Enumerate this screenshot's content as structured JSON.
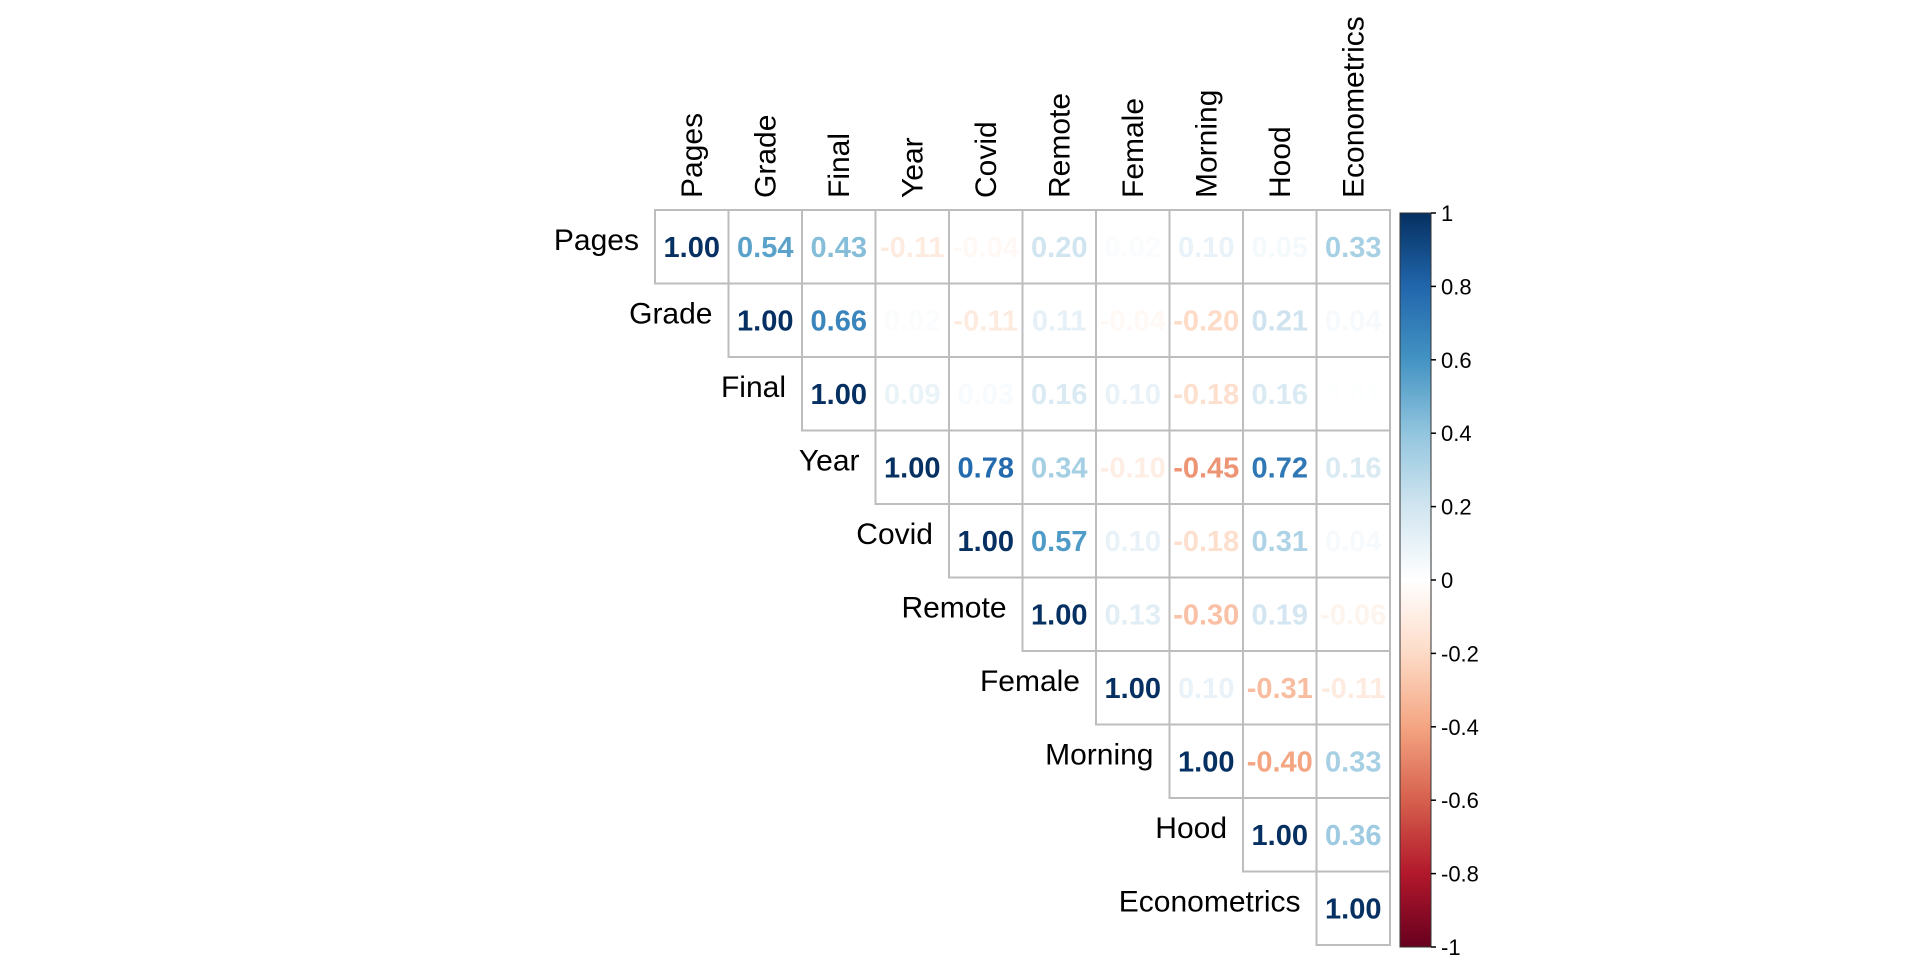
{
  "chart_data": {
    "type": "heatmap",
    "subtype": "correlation-matrix-upper",
    "variables": [
      "Pages",
      "Grade",
      "Final",
      "Year",
      "Covid",
      "Remote",
      "Female",
      "Morning",
      "Hood",
      "Econometrics"
    ],
    "matrix": [
      [
        1.0,
        0.54,
        0.43,
        -0.11,
        -0.04,
        0.2,
        0.02,
        0.1,
        0.05,
        0.33
      ],
      [
        null,
        1.0,
        0.66,
        0.02,
        -0.11,
        0.11,
        -0.04,
        -0.2,
        0.21,
        0.04
      ],
      [
        null,
        null,
        1.0,
        0.09,
        0.03,
        0.16,
        0.1,
        -0.18,
        0.16,
        0.01
      ],
      [
        null,
        null,
        null,
        1.0,
        0.78,
        0.34,
        -0.1,
        -0.45,
        0.72,
        0.16
      ],
      [
        null,
        null,
        null,
        null,
        1.0,
        0.57,
        0.1,
        -0.18,
        0.31,
        0.04
      ],
      [
        null,
        null,
        null,
        null,
        null,
        1.0,
        0.13,
        -0.3,
        0.19,
        -0.06
      ],
      [
        null,
        null,
        null,
        null,
        null,
        null,
        1.0,
        0.1,
        -0.31,
        -0.11
      ],
      [
        null,
        null,
        null,
        null,
        null,
        null,
        null,
        1.0,
        -0.4,
        0.33
      ],
      [
        null,
        null,
        null,
        null,
        null,
        null,
        null,
        null,
        1.0,
        0.36
      ],
      [
        null,
        null,
        null,
        null,
        null,
        null,
        null,
        null,
        null,
        1.0
      ]
    ],
    "value_format": "0.00",
    "colorbar": {
      "range": [
        -1,
        1
      ],
      "ticks": [
        "1",
        "0.8",
        "0.6",
        "0.4",
        "0.2",
        "0",
        "-0.2",
        "-0.4",
        "-0.6",
        "-0.8",
        "-1"
      ],
      "placement": "right",
      "colors": [
        "#67001f",
        "#b2182b",
        "#d6604d",
        "#f4a582",
        "#fddbc7",
        "#ffffff",
        "#d1e5f0",
        "#92c5de",
        "#4393c3",
        "#2166ac",
        "#053061"
      ]
    },
    "grid": true,
    "title": "",
    "xlabel": "",
    "ylabel": ""
  }
}
